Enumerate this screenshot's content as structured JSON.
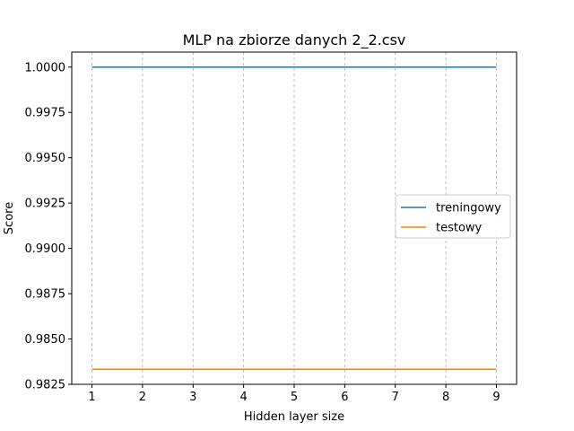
{
  "chart_data": {
    "type": "line",
    "title": "MLP na zbiorze danych 2_2.csv",
    "xlabel": "Hidden layer size",
    "ylabel": "Score",
    "x": [
      1,
      2,
      3,
      4,
      5,
      6,
      7,
      8,
      9
    ],
    "xlim": [
      0.6,
      9.4
    ],
    "ylim": [
      0.9825,
      1.00083
    ],
    "xticks": [
      "1",
      "2",
      "3",
      "4",
      "5",
      "6",
      "7",
      "8",
      "9"
    ],
    "yticks": [
      "0.9825",
      "0.9850",
      "0.9875",
      "0.9900",
      "0.9925",
      "0.9950",
      "0.9975",
      "1.0000"
    ],
    "grid": "x-dashed",
    "legend_position": "center-right",
    "series": [
      {
        "name": "treningowy",
        "color": "#1f77b4",
        "values": [
          1.0,
          1.0,
          1.0,
          1.0,
          1.0,
          1.0,
          1.0,
          1.0,
          1.0
        ]
      },
      {
        "name": "testowy",
        "color": "#ff7f0e",
        "values": [
          0.98333,
          0.98333,
          0.98333,
          0.98333,
          0.98333,
          0.98333,
          0.98333,
          0.98333,
          0.98333
        ]
      }
    ]
  }
}
